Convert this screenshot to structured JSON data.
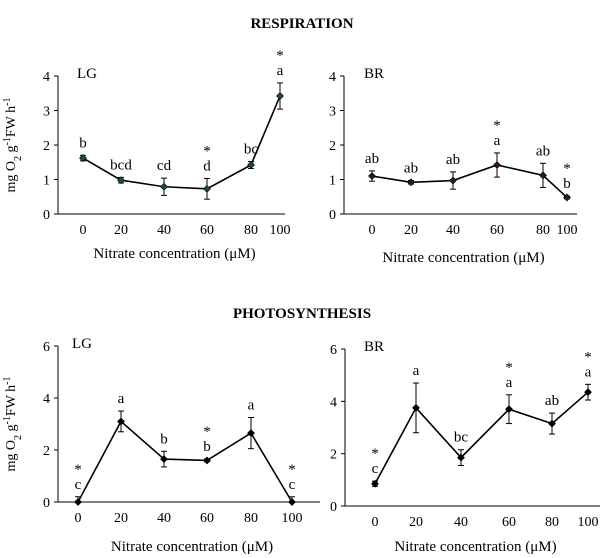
{
  "figure": {
    "section_titles": [
      "RESPIRATION",
      "PHOTOSYNTHESIS"
    ]
  },
  "chart_data": [
    {
      "type": "line",
      "section": "RESPIRATION",
      "panel_label": "LG",
      "title": "",
      "xlabel": "Nitrate concentration (μM)",
      "ylabel_parts": [
        "mg O",
        "2",
        " g",
        "-1",
        "FW h",
        "-1"
      ],
      "x": [
        0,
        20,
        40,
        60,
        80,
        100
      ],
      "x_ticks": [
        "0",
        "20",
        "40",
        "60",
        "80",
        "100"
      ],
      "ylim": [
        0,
        4
      ],
      "y_ticks": [
        "0",
        "1",
        "2",
        "3",
        "4"
      ],
      "values": [
        1.62,
        0.98,
        0.79,
        0.73,
        1.42,
        3.42
      ],
      "errors": [
        0.08,
        0.08,
        0.25,
        0.3,
        0.1,
        0.38
      ],
      "labels": [
        "b",
        "bcd",
        "cd",
        "d",
        "bc",
        "a"
      ],
      "stars": [
        "",
        "",
        "",
        "*",
        "",
        "*"
      ],
      "color": "#1e4d3a"
    },
    {
      "type": "line",
      "section": "RESPIRATION",
      "panel_label": "BR",
      "title": "",
      "xlabel": "Nitrate concentration (μM)",
      "ylabel_parts": [],
      "x": [
        0,
        20,
        40,
        60,
        80,
        100
      ],
      "x_ticks": [
        "0",
        "20",
        "40",
        "60",
        "80",
        "100"
      ],
      "ylim": [
        0,
        4
      ],
      "y_ticks": [
        "0",
        "1",
        "2",
        "3",
        "4"
      ],
      "values": [
        1.1,
        0.92,
        0.97,
        1.42,
        1.12,
        0.48
      ],
      "errors": [
        0.15,
        0.05,
        0.25,
        0.35,
        0.35,
        0.04
      ],
      "labels": [
        "ab",
        "ab",
        "ab",
        "a",
        "ab",
        "b"
      ],
      "stars": [
        "",
        "",
        "",
        "*",
        "",
        "*"
      ],
      "color": "#3a1c10"
    },
    {
      "type": "line",
      "section": "PHOTOSYNTHESIS",
      "panel_label": "LG",
      "title": "",
      "xlabel": "Nitrate concentration (μM)",
      "ylabel_parts": [
        "mg O",
        "2",
        " g",
        "-1",
        "FW h",
        "-1"
      ],
      "x": [
        0,
        20,
        40,
        60,
        80,
        100
      ],
      "x_ticks": [
        "0",
        "20",
        "40",
        "60",
        "80",
        "100"
      ],
      "ylim": [
        0,
        6
      ],
      "y_ticks": [
        "0",
        "2",
        "4",
        "6"
      ],
      "values": [
        0.0,
        3.1,
        1.65,
        1.6,
        2.65,
        0.0
      ],
      "errors": [
        0.2,
        0.4,
        0.3,
        0.05,
        0.6,
        0.2
      ],
      "labels": [
        "c",
        "a",
        "b",
        "b",
        "a",
        "c"
      ],
      "stars": [
        "*",
        "",
        "",
        "*",
        "",
        "*"
      ],
      "color": "#000000"
    },
    {
      "type": "line",
      "section": "PHOTOSYNTHESIS",
      "panel_label": "BR",
      "title": "",
      "xlabel": "Nitrate concentration (μM)",
      "ylabel_parts": [],
      "x": [
        0,
        20,
        40,
        60,
        80,
        100
      ],
      "x_ticks": [
        "0",
        "20",
        "40",
        "60",
        "80",
        "100"
      ],
      "ylim": [
        0,
        6
      ],
      "y_ticks": [
        "0",
        "2",
        "4",
        "6"
      ],
      "values": [
        0.85,
        3.75,
        1.85,
        3.7,
        3.15,
        4.35
      ],
      "errors": [
        0.1,
        0.95,
        0.3,
        0.55,
        0.4,
        0.3
      ],
      "labels": [
        "c",
        "a",
        "bc",
        "a",
        "ab",
        "a"
      ],
      "stars": [
        "*",
        "",
        "",
        "*",
        "",
        "*"
      ],
      "color": "#000000"
    }
  ]
}
